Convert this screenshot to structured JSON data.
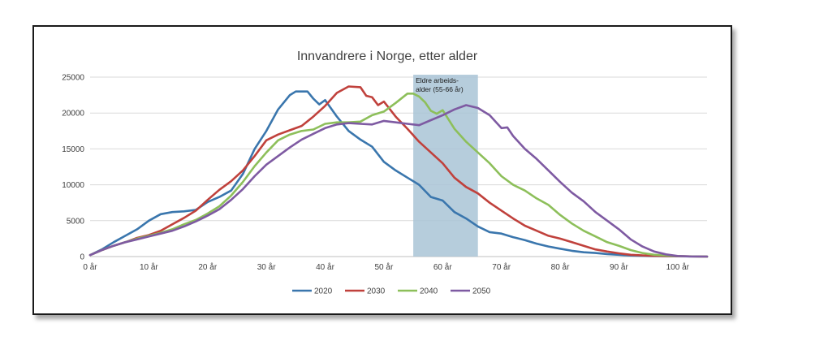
{
  "chart_data": {
    "type": "line",
    "title": "Innvandrere i Norge, etter alder",
    "xlabel": "",
    "ylabel": "",
    "xlim": [
      0,
      105
    ],
    "ylim": [
      0,
      25000
    ],
    "x_ticks": [
      "0 år",
      "10 år",
      "20 år",
      "30 år",
      "40 år",
      "50 år",
      "60 år",
      "70 år",
      "80 år",
      "90 år",
      "100 år"
    ],
    "y_ticks": [
      "0",
      "5000",
      "10000",
      "15000",
      "20000",
      "25000"
    ],
    "grid": "horizontal",
    "legend_position": "bottom",
    "highlight": {
      "x_range": [
        55,
        66
      ],
      "label_line1": "Eldre arbeids-",
      "label_line2": "alder (55-66 år)",
      "color": "#a9c4d6"
    },
    "series": [
      {
        "name": "2020",
        "color": "#3a76ad",
        "points": [
          [
            0,
            200
          ],
          [
            2,
            1000
          ],
          [
            4,
            2000
          ],
          [
            6,
            2900
          ],
          [
            8,
            3800
          ],
          [
            10,
            5000
          ],
          [
            12,
            5900
          ],
          [
            14,
            6200
          ],
          [
            16,
            6300
          ],
          [
            18,
            6500
          ],
          [
            20,
            7600
          ],
          [
            22,
            8300
          ],
          [
            24,
            9200
          ],
          [
            26,
            11500
          ],
          [
            28,
            15000
          ],
          [
            30,
            17500
          ],
          [
            32,
            20500
          ],
          [
            34,
            22500
          ],
          [
            35,
            23000
          ],
          [
            37,
            23000
          ],
          [
            38,
            22000
          ],
          [
            39,
            21200
          ],
          [
            40,
            21800
          ],
          [
            42,
            19500
          ],
          [
            44,
            17500
          ],
          [
            46,
            16300
          ],
          [
            48,
            15300
          ],
          [
            50,
            13200
          ],
          [
            52,
            12000
          ],
          [
            54,
            11000
          ],
          [
            56,
            10000
          ],
          [
            58,
            8300
          ],
          [
            60,
            7800
          ],
          [
            62,
            6200
          ],
          [
            64,
            5300
          ],
          [
            66,
            4200
          ],
          [
            68,
            3400
          ],
          [
            70,
            3200
          ],
          [
            72,
            2700
          ],
          [
            74,
            2300
          ],
          [
            76,
            1800
          ],
          [
            78,
            1400
          ],
          [
            80,
            1100
          ],
          [
            82,
            800
          ],
          [
            84,
            600
          ],
          [
            86,
            500
          ],
          [
            88,
            350
          ],
          [
            90,
            250
          ],
          [
            92,
            150
          ],
          [
            95,
            80
          ],
          [
            100,
            30
          ],
          [
            105,
            0
          ]
        ]
      },
      {
        "name": "2030",
        "color": "#c0413c",
        "points": [
          [
            0,
            200
          ],
          [
            2,
            900
          ],
          [
            4,
            1500
          ],
          [
            6,
            2000
          ],
          [
            8,
            2600
          ],
          [
            10,
            3000
          ],
          [
            12,
            3600
          ],
          [
            14,
            4500
          ],
          [
            16,
            5400
          ],
          [
            18,
            6400
          ],
          [
            20,
            7900
          ],
          [
            22,
            9300
          ],
          [
            24,
            10500
          ],
          [
            26,
            12000
          ],
          [
            28,
            14000
          ],
          [
            30,
            16200
          ],
          [
            32,
            17000
          ],
          [
            34,
            17600
          ],
          [
            36,
            18200
          ],
          [
            38,
            19500
          ],
          [
            40,
            21000
          ],
          [
            42,
            22800
          ],
          [
            44,
            23700
          ],
          [
            46,
            23600
          ],
          [
            47,
            22400
          ],
          [
            48,
            22200
          ],
          [
            49,
            21100
          ],
          [
            50,
            21600
          ],
          [
            52,
            19500
          ],
          [
            54,
            17800
          ],
          [
            56,
            16000
          ],
          [
            58,
            14500
          ],
          [
            60,
            13000
          ],
          [
            62,
            11000
          ],
          [
            64,
            9700
          ],
          [
            66,
            8800
          ],
          [
            68,
            7500
          ],
          [
            70,
            6400
          ],
          [
            72,
            5300
          ],
          [
            74,
            4300
          ],
          [
            76,
            3600
          ],
          [
            78,
            2900
          ],
          [
            80,
            2500
          ],
          [
            82,
            2000
          ],
          [
            84,
            1500
          ],
          [
            86,
            1000
          ],
          [
            88,
            700
          ],
          [
            90,
            450
          ],
          [
            92,
            250
          ],
          [
            95,
            120
          ],
          [
            100,
            40
          ],
          [
            105,
            0
          ]
        ]
      },
      {
        "name": "2040",
        "color": "#8dbf5a",
        "points": [
          [
            0,
            200
          ],
          [
            2,
            900
          ],
          [
            4,
            1500
          ],
          [
            6,
            2000
          ],
          [
            8,
            2500
          ],
          [
            10,
            2900
          ],
          [
            12,
            3300
          ],
          [
            14,
            3800
          ],
          [
            16,
            4500
          ],
          [
            18,
            5100
          ],
          [
            20,
            6000
          ],
          [
            22,
            7000
          ],
          [
            24,
            8500
          ],
          [
            26,
            10400
          ],
          [
            28,
            12600
          ],
          [
            30,
            14500
          ],
          [
            32,
            16200
          ],
          [
            34,
            17000
          ],
          [
            36,
            17500
          ],
          [
            38,
            17700
          ],
          [
            40,
            18500
          ],
          [
            42,
            18700
          ],
          [
            44,
            18700
          ],
          [
            46,
            18800
          ],
          [
            48,
            19700
          ],
          [
            50,
            20200
          ],
          [
            52,
            21400
          ],
          [
            54,
            22700
          ],
          [
            55,
            22700
          ],
          [
            56,
            22300
          ],
          [
            57,
            21500
          ],
          [
            58,
            20300
          ],
          [
            59,
            19900
          ],
          [
            60,
            20400
          ],
          [
            62,
            17800
          ],
          [
            64,
            16000
          ],
          [
            66,
            14500
          ],
          [
            68,
            13000
          ],
          [
            70,
            11200
          ],
          [
            72,
            10000
          ],
          [
            74,
            9200
          ],
          [
            76,
            8100
          ],
          [
            78,
            7200
          ],
          [
            80,
            5800
          ],
          [
            82,
            4600
          ],
          [
            84,
            3600
          ],
          [
            86,
            2800
          ],
          [
            88,
            2000
          ],
          [
            90,
            1500
          ],
          [
            92,
            900
          ],
          [
            94,
            500
          ],
          [
            96,
            250
          ],
          [
            100,
            60
          ],
          [
            105,
            0
          ]
        ]
      },
      {
        "name": "2050",
        "color": "#7e5aa2",
        "points": [
          [
            0,
            200
          ],
          [
            2,
            900
          ],
          [
            4,
            1500
          ],
          [
            6,
            2000
          ],
          [
            8,
            2400
          ],
          [
            10,
            2800
          ],
          [
            12,
            3200
          ],
          [
            14,
            3600
          ],
          [
            16,
            4200
          ],
          [
            18,
            4900
          ],
          [
            20,
            5700
          ],
          [
            22,
            6600
          ],
          [
            24,
            7900
          ],
          [
            26,
            9400
          ],
          [
            28,
            11200
          ],
          [
            30,
            12800
          ],
          [
            32,
            14000
          ],
          [
            34,
            15200
          ],
          [
            36,
            16300
          ],
          [
            38,
            17100
          ],
          [
            40,
            17900
          ],
          [
            42,
            18400
          ],
          [
            44,
            18600
          ],
          [
            46,
            18500
          ],
          [
            48,
            18400
          ],
          [
            50,
            18900
          ],
          [
            52,
            18700
          ],
          [
            54,
            18500
          ],
          [
            56,
            18300
          ],
          [
            58,
            19000
          ],
          [
            60,
            19700
          ],
          [
            62,
            20500
          ],
          [
            64,
            21100
          ],
          [
            66,
            20700
          ],
          [
            68,
            19700
          ],
          [
            70,
            17900
          ],
          [
            71,
            18000
          ],
          [
            72,
            16800
          ],
          [
            74,
            15000
          ],
          [
            76,
            13600
          ],
          [
            78,
            12000
          ],
          [
            80,
            10400
          ],
          [
            82,
            8900
          ],
          [
            84,
            7700
          ],
          [
            86,
            6200
          ],
          [
            88,
            5000
          ],
          [
            90,
            3800
          ],
          [
            92,
            2400
          ],
          [
            94,
            1400
          ],
          [
            96,
            700
          ],
          [
            98,
            300
          ],
          [
            100,
            80
          ],
          [
            102,
            20
          ],
          [
            105,
            0
          ]
        ]
      }
    ]
  }
}
